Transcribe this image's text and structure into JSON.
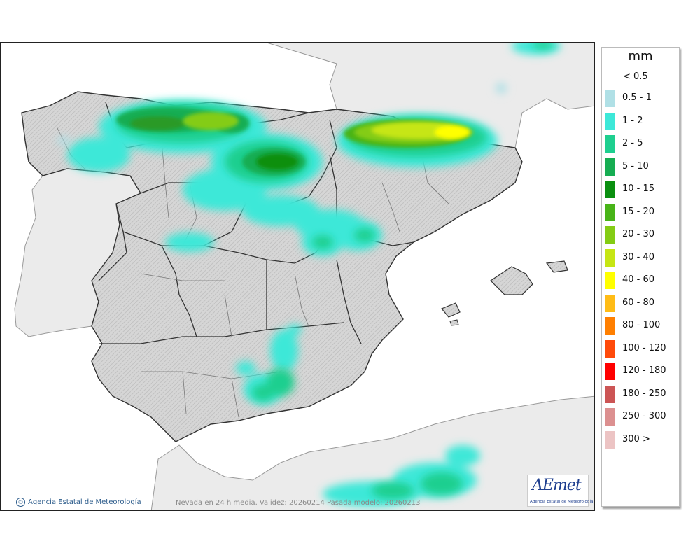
{
  "map": {
    "credit": "Agencia Estatal de Meteorología",
    "footer": "Nevada en 24 h media. Validez: 20260214 Pasada modelo: 20260213",
    "logo_word": "AEmet",
    "logo_sub": "Agencia Estatal de Meteorología"
  },
  "legend": {
    "unit": "mm",
    "below_threshold": "< 0.5",
    "items": [
      {
        "label": "0.5 - 1",
        "color": "#b0e0e6"
      },
      {
        "label": "1 - 2",
        "color": "#3de8d8"
      },
      {
        "label": "2 - 5",
        "color": "#1ecf8f"
      },
      {
        "label": "5 - 10",
        "color": "#16ad52"
      },
      {
        "label": "10 - 15",
        "color": "#0a8f10"
      },
      {
        "label": "15 - 20",
        "color": "#48b418"
      },
      {
        "label": "20 - 30",
        "color": "#84cc14"
      },
      {
        "label": "30 - 40",
        "color": "#c6e614"
      },
      {
        "label": "40 - 60",
        "color": "#ffff00"
      },
      {
        "label": "60 - 80",
        "color": "#ffbc16"
      },
      {
        "label": "80 - 100",
        "color": "#ff7f00"
      },
      {
        "label": "100 - 120",
        "color": "#ff4a0a"
      },
      {
        "label": "120 - 180",
        "color": "#ff0000"
      },
      {
        "label": "180 - 250",
        "color": "#cc5555"
      },
      {
        "label": "250 - 300",
        "color": "#dc9090"
      },
      {
        "label": "300 >",
        "color": "#ecc4c4"
      }
    ]
  },
  "colors": {
    "sea": "#ffffff",
    "land_spain": "#d9d9d9",
    "land_other": "#ebebeb"
  }
}
